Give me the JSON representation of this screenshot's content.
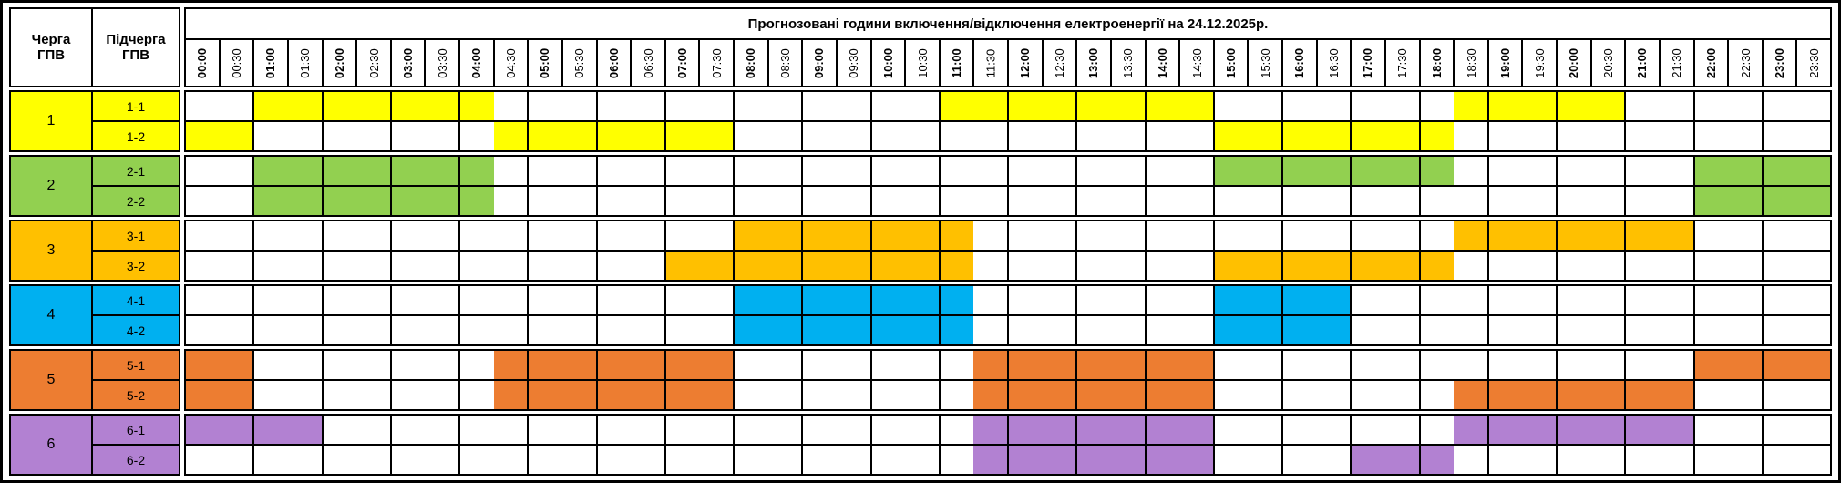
{
  "title": "Прогнозовані години включення/відключення електроенергії на 24.12.2025р.",
  "headers": {
    "queue": "Черга ГПВ",
    "subqueue": "Підчерга ГПВ"
  },
  "time_slots": [
    "00:00",
    "00:30",
    "01:00",
    "01:30",
    "02:00",
    "02:30",
    "03:00",
    "03:30",
    "04:00",
    "04:30",
    "05:00",
    "05:30",
    "06:00",
    "06:30",
    "07:00",
    "07:30",
    "08:00",
    "08:30",
    "09:00",
    "09:30",
    "10:00",
    "10:30",
    "11:00",
    "11:30",
    "12:00",
    "12:30",
    "13:00",
    "13:30",
    "14:00",
    "14:30",
    "15:00",
    "15:30",
    "16:00",
    "16:30",
    "17:00",
    "17:30",
    "18:00",
    "18:30",
    "19:00",
    "19:30",
    "20:00",
    "20:30",
    "21:00",
    "21:30",
    "22:00",
    "22:30",
    "23:00",
    "23:30"
  ],
  "colors": {
    "border": "#000000",
    "background": "#FFFFFF"
  },
  "queues": [
    {
      "number": "1",
      "color": "#FFFF00",
      "rows": [
        {
          "label": "1-1",
          "filled_slot_ranges": [
            [
              2,
              8
            ],
            [
              22,
              29
            ],
            [
              37,
              41
            ]
          ]
        },
        {
          "label": "1-2",
          "filled_slot_ranges": [
            [
              0,
              1
            ],
            [
              9,
              15
            ],
            [
              30,
              36
            ]
          ]
        }
      ]
    },
    {
      "number": "2",
      "color": "#92D050",
      "rows": [
        {
          "label": "2-1",
          "filled_slot_ranges": [
            [
              2,
              8
            ],
            [
              30,
              36
            ],
            [
              44,
              47
            ]
          ]
        },
        {
          "label": "2-2",
          "filled_slot_ranges": [
            [
              2,
              8
            ],
            [
              44,
              47
            ]
          ]
        }
      ]
    },
    {
      "number": "3",
      "color": "#FFC000",
      "rows": [
        {
          "label": "3-1",
          "filled_slot_ranges": [
            [
              16,
              22
            ],
            [
              37,
              43
            ]
          ]
        },
        {
          "label": "3-2",
          "filled_slot_ranges": [
            [
              14,
              22
            ],
            [
              30,
              36
            ]
          ]
        }
      ]
    },
    {
      "number": "4",
      "color": "#00B0F0",
      "rows": [
        {
          "label": "4-1",
          "filled_slot_ranges": [
            [
              16,
              22
            ],
            [
              30,
              33
            ]
          ]
        },
        {
          "label": "4-2",
          "filled_slot_ranges": [
            [
              16,
              22
            ],
            [
              30,
              33
            ]
          ]
        }
      ]
    },
    {
      "number": "5",
      "color": "#ED7D31",
      "rows": [
        {
          "label": "5-1",
          "filled_slot_ranges": [
            [
              0,
              1
            ],
            [
              9,
              15
            ],
            [
              23,
              29
            ],
            [
              44,
              47
            ]
          ]
        },
        {
          "label": "5-2",
          "filled_slot_ranges": [
            [
              0,
              1
            ],
            [
              9,
              15
            ],
            [
              23,
              29
            ],
            [
              37,
              43
            ]
          ]
        }
      ]
    },
    {
      "number": "6",
      "color": "#B281D2",
      "rows": [
        {
          "label": "6-1",
          "filled_slot_ranges": [
            [
              0,
              3
            ],
            [
              23,
              29
            ],
            [
              37,
              43
            ]
          ]
        },
        {
          "label": "6-2",
          "filled_slot_ranges": [
            [
              23,
              29
            ],
            [
              34,
              36
            ]
          ]
        }
      ]
    }
  ]
}
